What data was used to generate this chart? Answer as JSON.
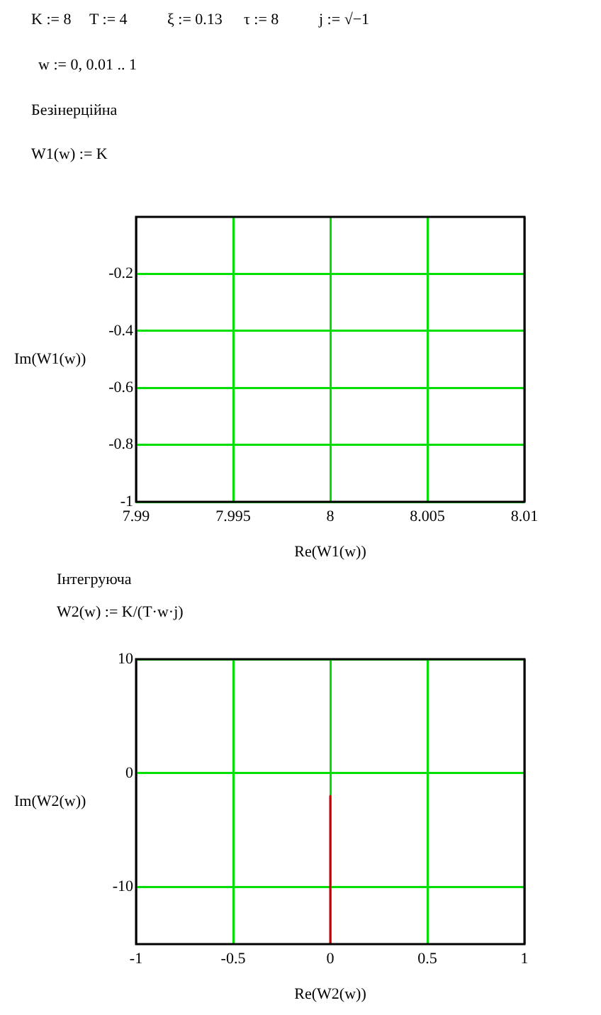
{
  "chart_data": [
    {
      "type": "line",
      "title": "Безінерційна",
      "annotations": [
        "K := 8",
        "T := 4",
        "ξ := 0.13",
        "τ := 8",
        "j := √−1",
        "w := 0, 0.01 .. 1",
        "W1(w) := K"
      ],
      "xlabel": "Re(W1(w))",
      "ylabel": "Im(W1(w))",
      "xlim": [
        7.99,
        8.01
      ],
      "xticks": [
        7.99,
        7.995,
        8,
        8.005,
        8.01
      ],
      "ylim": [
        -1,
        0
      ],
      "yticks": [
        -1,
        -0.8,
        -0.6,
        -0.4,
        -0.2
      ],
      "grid": true,
      "legend": false
    },
    {
      "type": "line",
      "title": "Інтегруюча",
      "annotations": [
        "W2(w) := K/(T·w·j)"
      ],
      "xlabel": "Re(W2(w))",
      "ylabel": "Im(W2(w))",
      "xlim": [
        -1,
        1
      ],
      "xticks": [
        -1,
        -0.5,
        0,
        0.5,
        1
      ],
      "ylim": [
        -15,
        10
      ],
      "yticks": [
        -10,
        0,
        10
      ],
      "grid": true,
      "legend": false,
      "marker": "none",
      "series": [
        {
          "color": "#cc0000",
          "x": [
            0,
            0
          ],
          "values": [
            -2,
            -15
          ]
        }
      ]
    }
  ]
}
